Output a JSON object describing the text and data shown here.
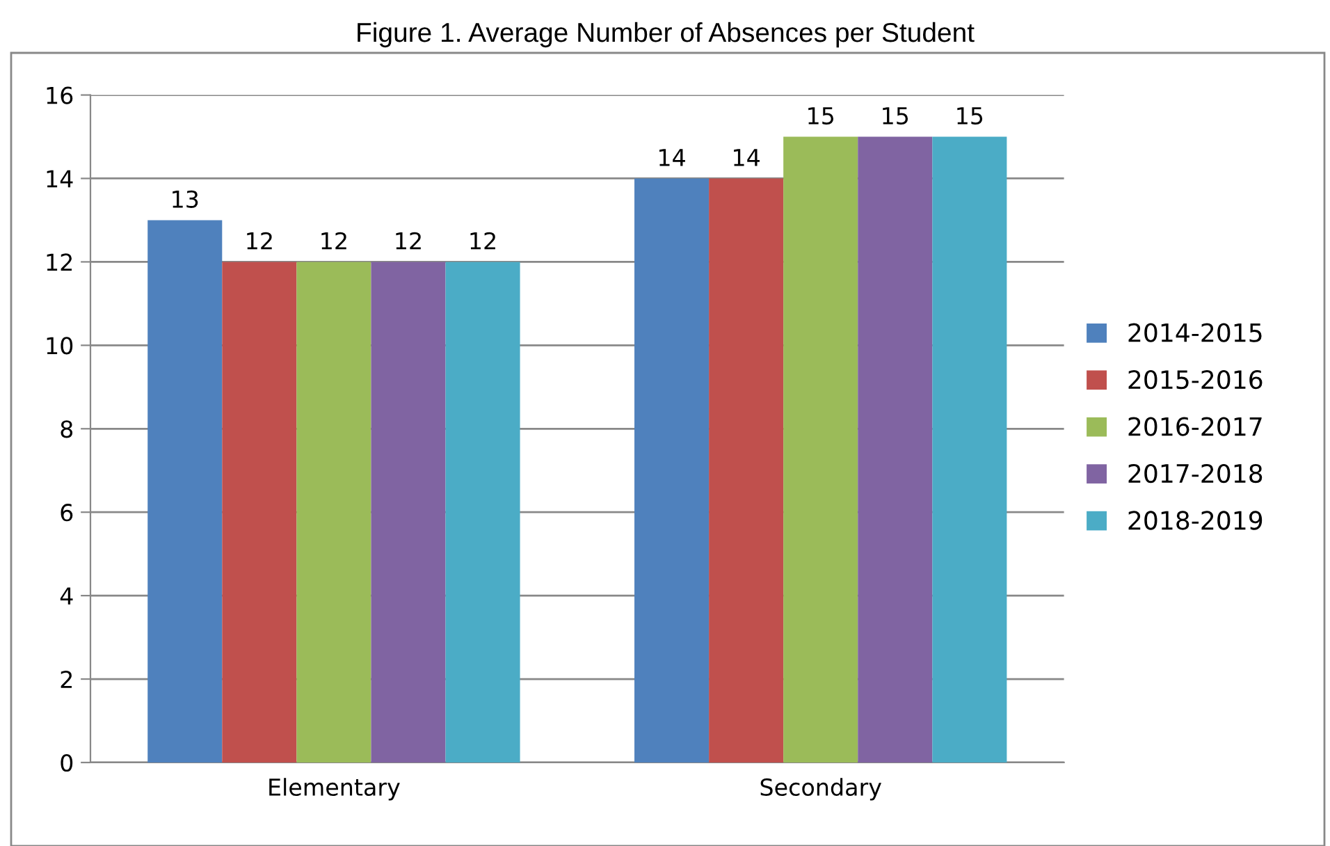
{
  "chart_data": {
    "type": "bar",
    "title": "Figure 1. Average Number of Absences per Student",
    "categories": [
      "Elementary",
      "Secondary"
    ],
    "series": [
      {
        "name": "2014-2015",
        "color": "#4f81bd",
        "values": [
          13,
          14
        ]
      },
      {
        "name": "2015-2016",
        "color": "#c0504d",
        "values": [
          12,
          14
        ]
      },
      {
        "name": "2016-2017",
        "color": "#9bbb59",
        "values": [
          12,
          15
        ]
      },
      {
        "name": "2017-2018",
        "color": "#8064a2",
        "values": [
          12,
          15
        ]
      },
      {
        "name": "2018-2019",
        "color": "#4bacc6",
        "values": [
          12,
          15
        ]
      }
    ],
    "ylim": [
      0,
      16
    ],
    "yticks": [
      0,
      2,
      4,
      6,
      8,
      10,
      12,
      14,
      16
    ],
    "grid": "y",
    "legend": "right",
    "data_labels": true
  }
}
